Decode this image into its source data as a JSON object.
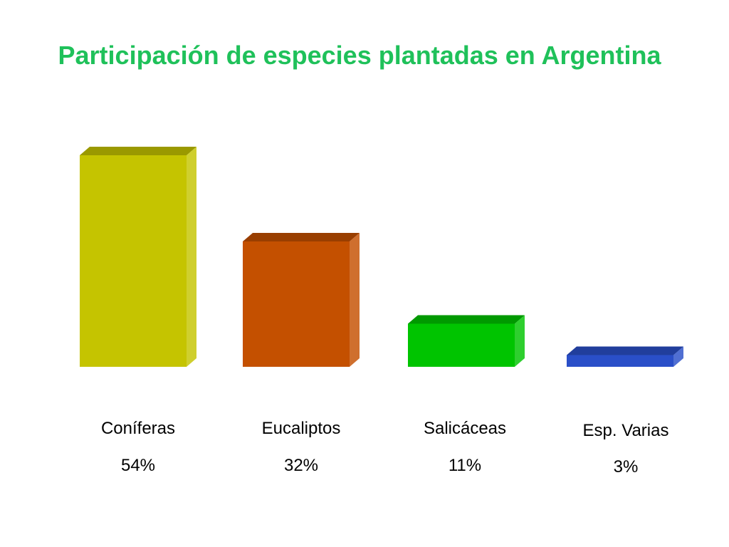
{
  "chart_data": {
    "type": "bar",
    "title": "Participación de especies plantadas en Argentina",
    "categories": [
      "Coníferas",
      "Eucaliptos",
      "Salicáceas",
      "Esp. Varias"
    ],
    "values": [
      54,
      32,
      11,
      3
    ],
    "value_labels": [
      "54%",
      "32%",
      "11%",
      "3%"
    ],
    "colors": [
      "#c5c400",
      "#c45000",
      "#00c400",
      "#2a4fc8"
    ],
    "ylim": [
      0,
      54
    ],
    "three_d": true,
    "grid": false,
    "legend": "none"
  }
}
